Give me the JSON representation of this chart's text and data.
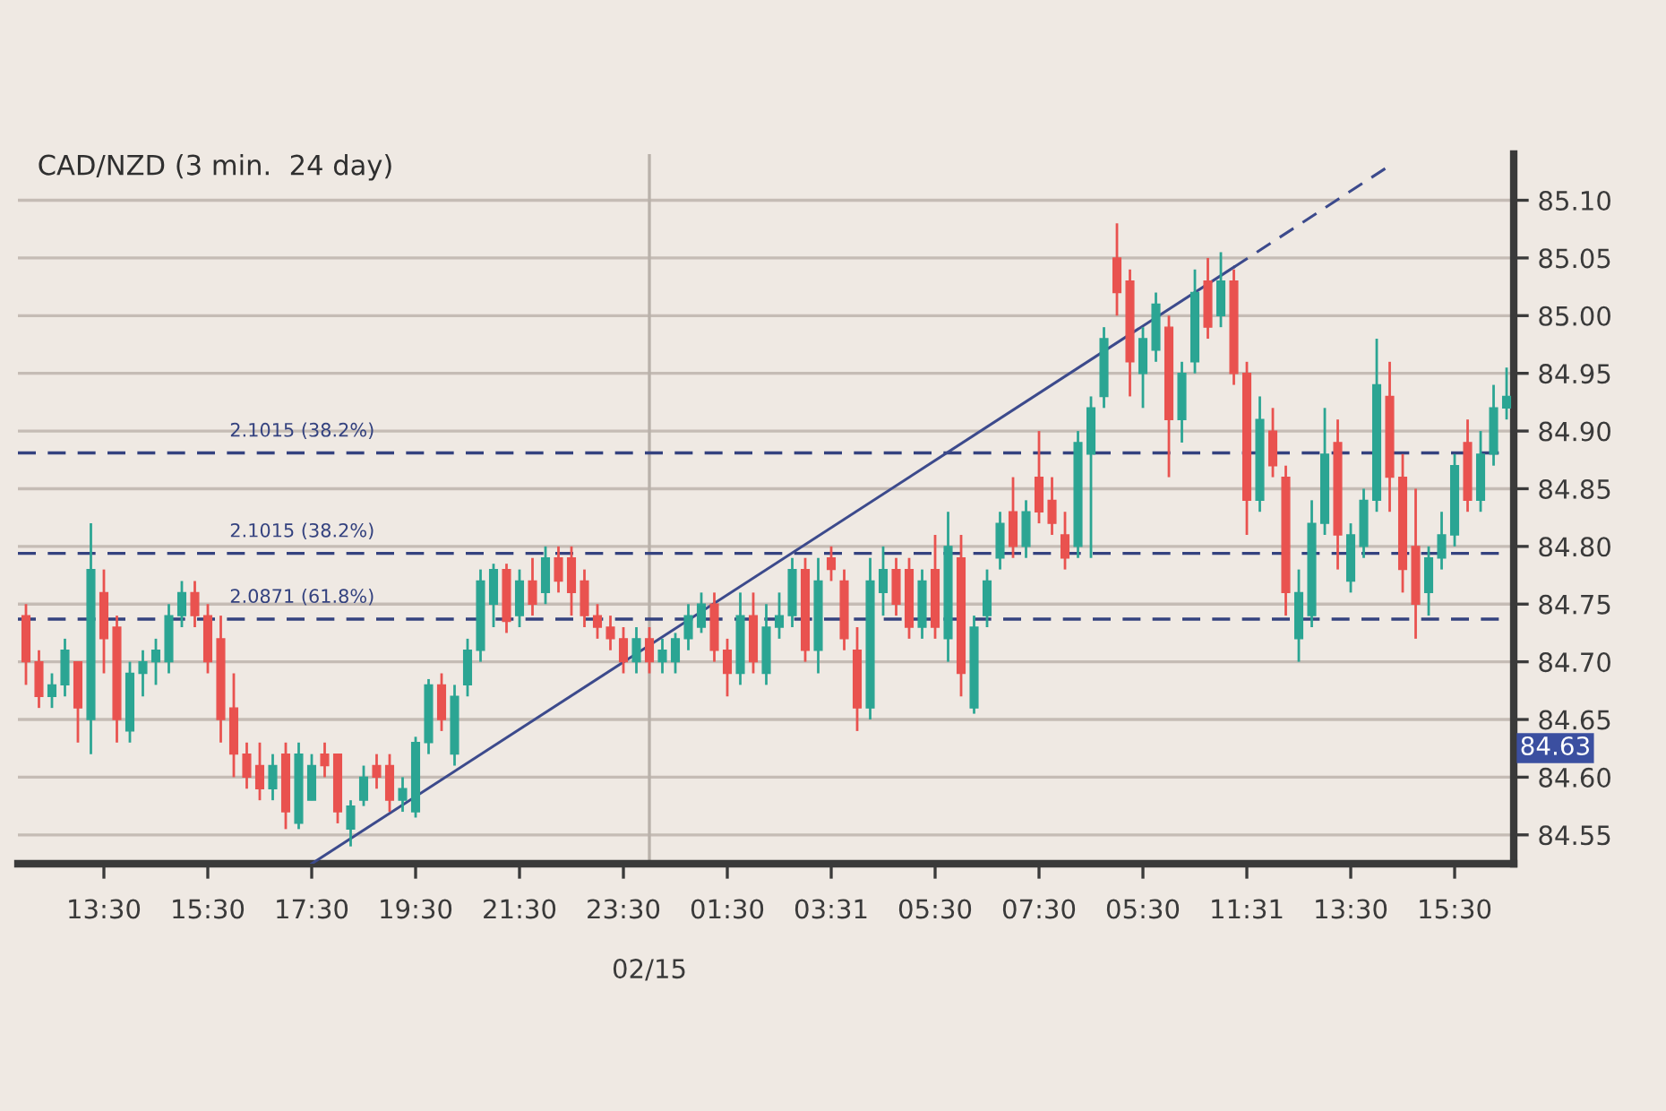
{
  "chart_data": {
    "type": "candlestick",
    "title": "CAD/NZD (3 min.  24 day)",
    "categories": [
      null,
      null,
      null,
      null,
      null,
      null,
      "13:30",
      null,
      null,
      null,
      null,
      null,
      null,
      null,
      "15:30",
      null,
      null,
      null,
      null,
      null,
      null,
      null,
      "17:30",
      null,
      null,
      null,
      null,
      null,
      null,
      null,
      "19:30",
      null,
      null,
      null,
      null,
      null,
      null,
      null,
      "21:30",
      null,
      null,
      null,
      null,
      null,
      null,
      null,
      "23:30",
      null,
      null,
      null,
      null,
      null,
      null,
      null,
      "01:30",
      null,
      null,
      null,
      null,
      null,
      null,
      null,
      "03:31",
      null,
      null,
      null,
      null,
      null,
      null,
      null,
      "05:30",
      null,
      null,
      null,
      null,
      null,
      null,
      null,
      "07:30",
      null,
      null,
      null,
      null,
      null,
      null,
      null,
      "05:30",
      null,
      null,
      null,
      null,
      null,
      null,
      null,
      "11:31",
      null,
      null,
      null,
      null,
      null,
      null,
      null,
      "13:30",
      null,
      null,
      null,
      null,
      null,
      null,
      null,
      "15:30",
      null,
      null,
      null,
      null
    ],
    "ohlc": [
      [
        84.74,
        84.75,
        84.68,
        84.7
      ],
      [
        84.7,
        84.71,
        84.66,
        84.67
      ],
      [
        84.67,
        84.69,
        84.66,
        84.68
      ],
      [
        84.68,
        84.72,
        84.67,
        84.71
      ],
      [
        84.7,
        84.7,
        84.63,
        84.66
      ],
      [
        84.65,
        84.82,
        84.62,
        84.78
      ],
      [
        84.76,
        84.78,
        84.69,
        84.72
      ],
      [
        84.73,
        84.74,
        84.63,
        84.65
      ],
      [
        84.64,
        84.7,
        84.63,
        84.69
      ],
      [
        84.69,
        84.71,
        84.67,
        84.7
      ],
      [
        84.7,
        84.72,
        84.68,
        84.71
      ],
      [
        84.7,
        84.75,
        84.69,
        84.74
      ],
      [
        84.74,
        84.77,
        84.73,
        84.76
      ],
      [
        84.76,
        84.77,
        84.73,
        84.74
      ],
      [
        84.74,
        84.75,
        84.69,
        84.7
      ],
      [
        84.72,
        84.74,
        84.63,
        84.65
      ],
      [
        84.66,
        84.69,
        84.6,
        84.62
      ],
      [
        84.62,
        84.63,
        84.59,
        84.6
      ],
      [
        84.61,
        84.63,
        84.58,
        84.59
      ],
      [
        84.59,
        84.62,
        84.58,
        84.61
      ],
      [
        84.62,
        84.63,
        84.555,
        84.57
      ],
      [
        84.56,
        84.63,
        84.555,
        84.62
      ],
      [
        84.58,
        84.62,
        84.58,
        84.61
      ],
      [
        84.62,
        84.63,
        84.6,
        84.61
      ],
      [
        84.62,
        84.62,
        84.56,
        84.57
      ],
      [
        84.555,
        84.58,
        84.54,
        84.575
      ],
      [
        84.58,
        84.61,
        84.575,
        84.6
      ],
      [
        84.61,
        84.62,
        84.59,
        84.6
      ],
      [
        84.61,
        84.62,
        84.57,
        84.58
      ],
      [
        84.58,
        84.6,
        84.57,
        84.59
      ],
      [
        84.57,
        84.635,
        84.565,
        84.63
      ],
      [
        84.63,
        84.685,
        84.62,
        84.68
      ],
      [
        84.68,
        84.69,
        84.64,
        84.65
      ],
      [
        84.62,
        84.68,
        84.61,
        84.67
      ],
      [
        84.68,
        84.72,
        84.67,
        84.71
      ],
      [
        84.71,
        84.78,
        84.7,
        84.77
      ],
      [
        84.75,
        84.785,
        84.73,
        84.78
      ],
      [
        84.78,
        84.785,
        84.725,
        84.735
      ],
      [
        84.74,
        84.78,
        84.73,
        84.77
      ],
      [
        84.77,
        84.79,
        84.74,
        84.75
      ],
      [
        84.76,
        84.8,
        84.75,
        84.79
      ],
      [
        84.79,
        84.8,
        84.76,
        84.77
      ],
      [
        84.79,
        84.8,
        84.74,
        84.76
      ],
      [
        84.77,
        84.78,
        84.73,
        84.74
      ],
      [
        84.74,
        84.75,
        84.72,
        84.73
      ],
      [
        84.73,
        84.74,
        84.71,
        84.72
      ],
      [
        84.72,
        84.73,
        84.69,
        84.7
      ],
      [
        84.7,
        84.73,
        84.69,
        84.72
      ],
      [
        84.72,
        84.73,
        84.69,
        84.7
      ],
      [
        84.7,
        84.72,
        84.69,
        84.71
      ],
      [
        84.7,
        84.725,
        84.69,
        84.72
      ],
      [
        84.72,
        84.75,
        84.71,
        84.74
      ],
      [
        84.73,
        84.76,
        84.725,
        84.75
      ],
      [
        84.75,
        84.76,
        84.7,
        84.71
      ],
      [
        84.71,
        84.72,
        84.67,
        84.69
      ],
      [
        84.69,
        84.76,
        84.68,
        84.74
      ],
      [
        84.74,
        84.76,
        84.69,
        84.7
      ],
      [
        84.69,
        84.75,
        84.68,
        84.73
      ],
      [
        84.73,
        84.76,
        84.72,
        84.74
      ],
      [
        84.74,
        84.79,
        84.73,
        84.78
      ],
      [
        84.78,
        84.79,
        84.7,
        84.71
      ],
      [
        84.71,
        84.79,
        84.69,
        84.77
      ],
      [
        84.79,
        84.8,
        84.77,
        84.78
      ],
      [
        84.77,
        84.78,
        84.71,
        84.72
      ],
      [
        84.71,
        84.73,
        84.64,
        84.66
      ],
      [
        84.66,
        84.79,
        84.65,
        84.77
      ],
      [
        84.76,
        84.8,
        84.74,
        84.78
      ],
      [
        84.78,
        84.79,
        84.74,
        84.75
      ],
      [
        84.78,
        84.79,
        84.72,
        84.73
      ],
      [
        84.73,
        84.78,
        84.72,
        84.77
      ],
      [
        84.78,
        84.81,
        84.72,
        84.73
      ],
      [
        84.72,
        84.83,
        84.7,
        84.8
      ],
      [
        84.79,
        84.81,
        84.67,
        84.69
      ],
      [
        84.66,
        84.74,
        84.655,
        84.73
      ],
      [
        84.74,
        84.78,
        84.73,
        84.77
      ],
      [
        84.79,
        84.83,
        84.78,
        84.82
      ],
      [
        84.83,
        84.86,
        84.79,
        84.8
      ],
      [
        84.8,
        84.84,
        84.79,
        84.83
      ],
      [
        84.86,
        84.9,
        84.82,
        84.83
      ],
      [
        84.84,
        84.86,
        84.81,
        84.82
      ],
      [
        84.81,
        84.83,
        84.78,
        84.79
      ],
      [
        84.8,
        84.9,
        84.79,
        84.89
      ],
      [
        84.88,
        84.93,
        84.79,
        84.92
      ],
      [
        84.93,
        84.99,
        84.92,
        84.98
      ],
      [
        85.05,
        85.08,
        85.0,
        85.02
      ],
      [
        85.03,
        85.04,
        84.93,
        84.96
      ],
      [
        84.95,
        84.99,
        84.92,
        84.98
      ],
      [
        84.97,
        85.02,
        84.96,
        85.01
      ],
      [
        84.99,
        85.0,
        84.86,
        84.91
      ],
      [
        84.91,
        84.96,
        84.89,
        84.95
      ],
      [
        84.96,
        85.04,
        84.95,
        85.02
      ],
      [
        85.03,
        85.05,
        84.98,
        84.99
      ],
      [
        85.0,
        85.055,
        84.99,
        85.03
      ],
      [
        85.03,
        85.04,
        84.94,
        84.95
      ],
      [
        84.95,
        84.96,
        84.81,
        84.84
      ],
      [
        84.84,
        84.93,
        84.83,
        84.91
      ],
      [
        84.9,
        84.92,
        84.86,
        84.87
      ],
      [
        84.86,
        84.87,
        84.74,
        84.76
      ],
      [
        84.72,
        84.78,
        84.7,
        84.76
      ],
      [
        84.74,
        84.84,
        84.73,
        84.82
      ],
      [
        84.82,
        84.92,
        84.81,
        84.88
      ],
      [
        84.89,
        84.91,
        84.78,
        84.81
      ],
      [
        84.77,
        84.82,
        84.76,
        84.81
      ],
      [
        84.8,
        84.85,
        84.79,
        84.84
      ],
      [
        84.84,
        84.98,
        84.83,
        84.94
      ],
      [
        84.93,
        84.96,
        84.83,
        84.86
      ],
      [
        84.86,
        84.88,
        84.76,
        84.78
      ],
      [
        84.8,
        84.85,
        84.72,
        84.75
      ],
      [
        84.76,
        84.8,
        84.74,
        84.79
      ],
      [
        84.79,
        84.83,
        84.78,
        84.81
      ],
      [
        84.81,
        84.88,
        84.8,
        84.87
      ],
      [
        84.89,
        84.91,
        84.83,
        84.84
      ],
      [
        84.84,
        84.9,
        84.83,
        84.88
      ],
      [
        84.88,
        84.94,
        84.87,
        84.92
      ],
      [
        84.92,
        84.955,
        84.91,
        84.93
      ]
    ],
    "series": [
      {
        "type": "line",
        "color": "#3c4a8c",
        "line_style": "solid",
        "values": [
          null,
          null,
          null,
          null,
          null,
          null,
          null,
          null,
          null,
          null,
          null,
          null,
          null,
          null,
          null,
          null,
          null,
          null,
          null,
          null,
          null,
          null,
          84.525,
          null,
          null,
          null,
          null,
          null,
          null,
          null,
          null,
          null,
          null,
          null,
          null,
          null,
          null,
          null,
          null,
          null,
          null,
          null,
          null,
          null,
          null,
          null,
          null,
          null,
          null,
          null,
          null,
          null,
          null,
          null,
          null,
          null,
          null,
          null,
          null,
          null,
          null,
          null,
          null,
          null,
          null,
          null,
          null,
          null,
          null,
          null,
          null,
          null,
          null,
          null,
          null,
          null,
          null,
          null,
          null,
          null,
          null,
          null,
          null,
          null,
          null,
          null,
          null,
          null,
          null,
          null,
          null,
          null,
          null,
          85.042,
          null,
          null,
          null,
          null,
          null,
          null,
          null,
          null,
          null,
          null,
          null,
          null,
          null,
          null,
          null,
          null,
          null,
          null,
          null,
          null,
          null
        ]
      },
      {
        "type": "line",
        "color": "#3c4a8c",
        "line_style": "dashed",
        "values": [
          null,
          null,
          null,
          null,
          null,
          null,
          null,
          null,
          null,
          null,
          null,
          null,
          null,
          null,
          null,
          null,
          null,
          null,
          null,
          null,
          null,
          null,
          null,
          null,
          null,
          null,
          null,
          null,
          null,
          null,
          null,
          null,
          null,
          null,
          null,
          null,
          null,
          null,
          null,
          null,
          null,
          null,
          null,
          null,
          null,
          null,
          null,
          null,
          null,
          null,
          null,
          null,
          null,
          null,
          null,
          null,
          null,
          null,
          null,
          null,
          null,
          null,
          null,
          null,
          null,
          null,
          null,
          null,
          null,
          null,
          null,
          null,
          null,
          null,
          null,
          null,
          null,
          null,
          null,
          null,
          null,
          null,
          null,
          null,
          null,
          null,
          null,
          null,
          null,
          null,
          null,
          null,
          null,
          85.042,
          null,
          null,
          null,
          null,
          null,
          null,
          null,
          null,
          null,
          null,
          null,
          85.13,
          null,
          null,
          null,
          null,
          null,
          null,
          null,
          null,
          null
        ]
      }
    ],
    "ylim": [
      84.525,
      85.14
    ],
    "yticks": [
      84.55,
      {
        "value": 84.6,
        "label": "84.60"
      },
      84.65,
      {
        "value": 84.7,
        "label": "84.70"
      },
      84.75,
      {
        "value": 84.8,
        "label": "84.80"
      },
      84.85,
      {
        "value": 84.9,
        "label": "84.90"
      },
      84.95,
      {
        "value": 85.0,
        "label": "85.00"
      },
      85.05,
      {
        "value": 85.1,
        "label": "85.10"
      }
    ],
    "grid": "y",
    "ref_lines": [
      {
        "axis": "y",
        "value": 84.881,
        "color": "#34427f",
        "line_style": "dashed"
      },
      {
        "axis": "y",
        "value": 84.794,
        "color": "#34427f",
        "line_style": "dashed"
      },
      {
        "axis": "y",
        "value": 84.737,
        "color": "#34427f",
        "line_style": "dashed"
      }
    ],
    "annotations": [
      {
        "text": "2.1015 (38.2%)",
        "y": 84.881
      },
      {
        "text": "2.1015 (38.2%)",
        "y": 84.794
      },
      {
        "text": "2.0871 (61.8%)",
        "y": 84.737
      },
      "84.63",
      "02/15"
    ]
  }
}
